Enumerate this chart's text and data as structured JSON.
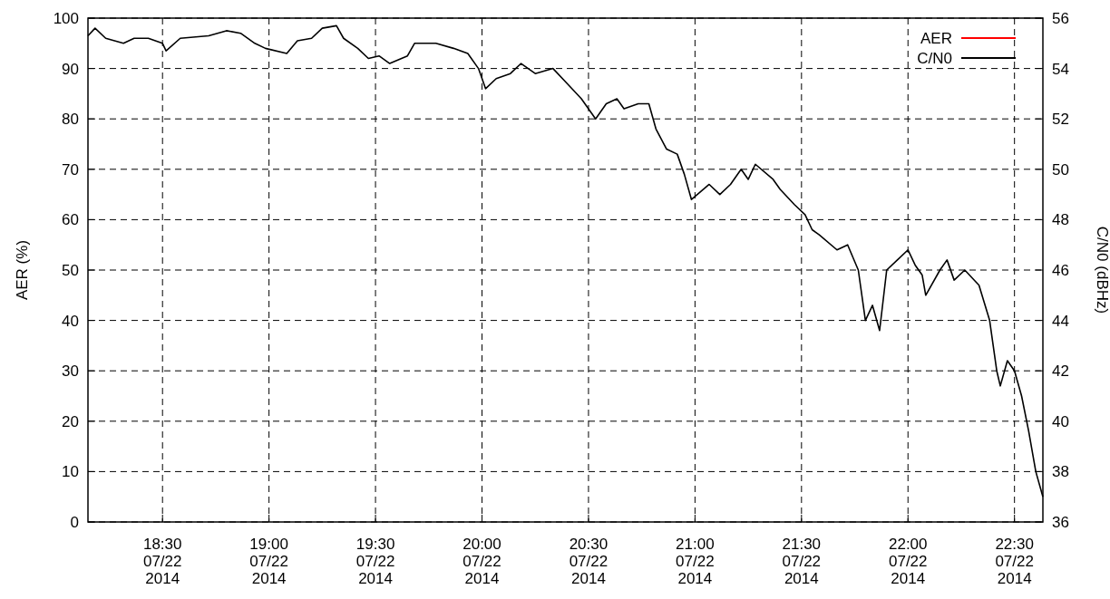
{
  "chart_data": {
    "type": "line",
    "ylabel": "AER (%)",
    "y2label": "C/N0 (dBHz)",
    "legend": "top right",
    "grid": true,
    "line_style": "solid",
    "marker": "none",
    "xlim": [
      "2014-07-22T18:09",
      "2014-07-22T22:38"
    ],
    "xticks": [
      {
        "value": "2014-07-22T18:30",
        "label": "18:30\n07/22\n2014"
      },
      {
        "value": "2014-07-22T19:00",
        "label": "19:00\n07/22\n2014"
      },
      {
        "value": "2014-07-22T19:30",
        "label": "19:30\n07/22\n2014"
      },
      {
        "value": "2014-07-22T20:00",
        "label": "20:00\n07/22\n2014"
      },
      {
        "value": "2014-07-22T20:30",
        "label": "20:30\n07/22\n2014"
      },
      {
        "value": "2014-07-22T21:00",
        "label": "21:00\n07/22\n2014"
      },
      {
        "value": "2014-07-22T21:30",
        "label": "21:30\n07/22\n2014"
      },
      {
        "value": "2014-07-22T22:00",
        "label": "22:00\n07/22\n2014"
      },
      {
        "value": "2014-07-22T22:30",
        "label": "22:30\n07/22\n2014"
      }
    ],
    "ylim": [
      0,
      100
    ],
    "yticks": [
      0,
      10,
      20,
      30,
      40,
      50,
      60,
      70,
      80,
      90,
      100
    ],
    "y2lim": [
      36,
      56
    ],
    "y2ticks": [
      36,
      38,
      40,
      42,
      44,
      46,
      48,
      50,
      52,
      54,
      56
    ],
    "series": [
      {
        "name": "AER",
        "color": "#ff0000"
      },
      {
        "name": "C/N0",
        "color": "#000000",
        "axis": "y2",
        "x": [
          "2014-07-22T18:09",
          "2014-07-22T18:11",
          "2014-07-22T18:14",
          "2014-07-22T18:19",
          "2014-07-22T18:22",
          "2014-07-22T18:26",
          "2014-07-22T18:30",
          "2014-07-22T18:31",
          "2014-07-22T18:35",
          "2014-07-22T18:43",
          "2014-07-22T18:48",
          "2014-07-22T18:52",
          "2014-07-22T18:56",
          "2014-07-22T18:59",
          "2014-07-22T19:05",
          "2014-07-22T19:08",
          "2014-07-22T19:12",
          "2014-07-22T19:15",
          "2014-07-22T19:19",
          "2014-07-22T19:21",
          "2014-07-22T19:25",
          "2014-07-22T19:28",
          "2014-07-22T19:31",
          "2014-07-22T19:34",
          "2014-07-22T19:39",
          "2014-07-22T19:41",
          "2014-07-22T19:47",
          "2014-07-22T19:52",
          "2014-07-22T19:56",
          "2014-07-22T19:59",
          "2014-07-22T20:01",
          "2014-07-22T20:04",
          "2014-07-22T20:08",
          "2014-07-22T20:11",
          "2014-07-22T20:15",
          "2014-07-22T20:20",
          "2014-07-22T20:24",
          "2014-07-22T20:28",
          "2014-07-22T20:32",
          "2014-07-22T20:35",
          "2014-07-22T20:38",
          "2014-07-22T20:40",
          "2014-07-22T20:44",
          "2014-07-22T20:47",
          "2014-07-22T20:49",
          "2014-07-22T20:52",
          "2014-07-22T20:55",
          "2014-07-22T20:57",
          "2014-07-22T20:59",
          "2014-07-22T21:04",
          "2014-07-22T21:07",
          "2014-07-22T21:10",
          "2014-07-22T21:13",
          "2014-07-22T21:15",
          "2014-07-22T21:17",
          "2014-07-22T21:22",
          "2014-07-22T21:24",
          "2014-07-22T21:28",
          "2014-07-22T21:31",
          "2014-07-22T21:33",
          "2014-07-22T21:35",
          "2014-07-22T21:40",
          "2014-07-22T21:43",
          "2014-07-22T21:46",
          "2014-07-22T21:48",
          "2014-07-22T21:50",
          "2014-07-22T21:52",
          "2014-07-22T21:54",
          "2014-07-22T21:57",
          "2014-07-22T22:00",
          "2014-07-22T22:02",
          "2014-07-22T22:04",
          "2014-07-22T22:05",
          "2014-07-22T22:09",
          "2014-07-22T22:11",
          "2014-07-22T22:13",
          "2014-07-22T22:16",
          "2014-07-22T22:20",
          "2014-07-22T22:23",
          "2014-07-22T22:25",
          "2014-07-22T22:26",
          "2014-07-22T22:28",
          "2014-07-22T22:30",
          "2014-07-22T22:32",
          "2014-07-22T22:34",
          "2014-07-22T22:36",
          "2014-07-22T22:38"
        ],
        "values": [
          55.3,
          55.6,
          55.2,
          55.0,
          55.2,
          55.2,
          55.0,
          54.7,
          55.2,
          55.3,
          55.5,
          55.4,
          55.0,
          54.8,
          54.6,
          55.1,
          55.2,
          55.6,
          55.7,
          55.2,
          54.8,
          54.4,
          54.5,
          54.2,
          54.5,
          55.0,
          55.0,
          54.8,
          54.6,
          54.0,
          53.2,
          53.6,
          53.8,
          54.2,
          53.8,
          54.0,
          53.4,
          52.8,
          52.0,
          52.6,
          52.8,
          52.4,
          52.6,
          52.6,
          51.6,
          50.8,
          50.6,
          49.8,
          48.8,
          49.4,
          49.0,
          49.4,
          50.0,
          49.6,
          50.2,
          49.6,
          49.2,
          48.6,
          48.2,
          47.6,
          47.4,
          46.8,
          47.0,
          46.0,
          44.0,
          44.6,
          43.6,
          46.0,
          46.4,
          46.8,
          46.2,
          45.8,
          45.0,
          46.0,
          46.4,
          45.6,
          46.0,
          45.4,
          44.0,
          42.0,
          41.4,
          42.4,
          42.0,
          41.0,
          39.6,
          38.0,
          37.0
        ]
      }
    ]
  }
}
